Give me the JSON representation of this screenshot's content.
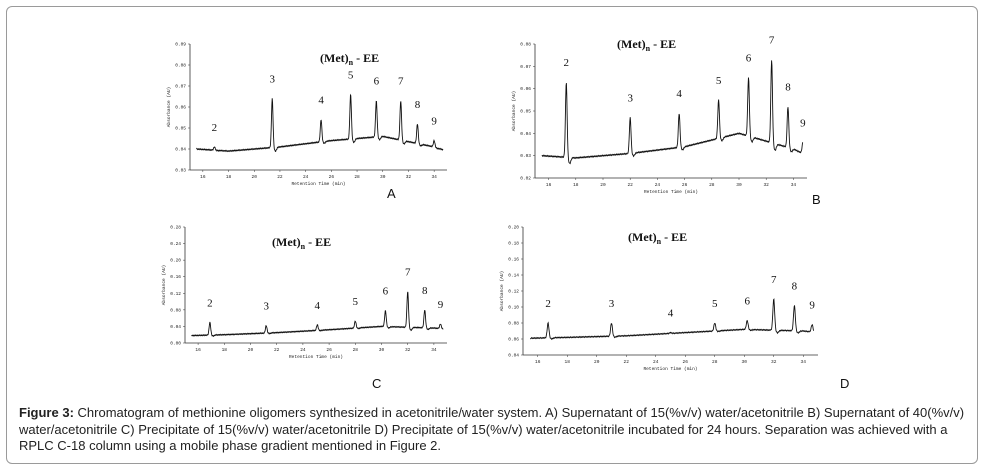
{
  "chart_data": [
    {
      "id": "A",
      "type": "line",
      "title_main": "(Met)",
      "title_sub": "n",
      "title_tail": " - EE",
      "panel_label": "A",
      "xlabel": "Retention Time (min)",
      "ylabel": "Absorbance (AU)",
      "x_ticks": [
        "16",
        "18",
        "20",
        "22",
        "24",
        "26",
        "28",
        "30",
        "32",
        "34"
      ],
      "y_ticks": [
        "0.09",
        "0.08",
        "0.07",
        "0.06",
        "0.05",
        "0.04",
        "0.03"
      ],
      "xlim": [
        15,
        35
      ],
      "ylim": [
        0.03,
        0.09
      ],
      "baseline": {
        "x": [
          15.5,
          18,
          22,
          26,
          30,
          34,
          35
        ],
        "y": [
          0.04,
          0.039,
          0.041,
          0.044,
          0.046,
          0.041,
          0.039
        ]
      },
      "peaks": [
        {
          "label": "2",
          "x": 16.9,
          "height": 0.041
        },
        {
          "label": "3",
          "x": 21.4,
          "height": 0.064
        },
        {
          "label": "4",
          "x": 25.2,
          "height": 0.054
        },
        {
          "label": "5",
          "x": 27.5,
          "height": 0.066
        },
        {
          "label": "6",
          "x": 29.5,
          "height": 0.063
        },
        {
          "label": "7",
          "x": 31.4,
          "height": 0.063
        },
        {
          "label": "8",
          "x": 32.7,
          "height": 0.052
        },
        {
          "label": "9",
          "x": 34.0,
          "height": 0.044
        }
      ]
    },
    {
      "id": "B",
      "type": "line",
      "title_main": "(Met)",
      "title_sub": "n",
      "title_tail": " - EE",
      "panel_label": "B",
      "xlabel": "Retention Time (min)",
      "ylabel": "Absorbance (AU)",
      "x_ticks": [
        "16",
        "18",
        "20",
        "22",
        "24",
        "26",
        "28",
        "30",
        "32",
        "34"
      ],
      "y_ticks": [
        "0.08",
        "0.07",
        "0.06",
        "0.05",
        "0.04",
        "0.03",
        "0.02"
      ],
      "xlim": [
        15,
        35
      ],
      "ylim": [
        0.02,
        0.08
      ],
      "baseline": {
        "x": [
          15.5,
          18,
          22,
          26,
          30,
          34,
          35
        ],
        "y": [
          0.03,
          0.029,
          0.031,
          0.034,
          0.04,
          0.033,
          0.03
        ]
      },
      "peaks": [
        {
          "label": "2",
          "x": 17.3,
          "height": 0.063
        },
        {
          "label": "3",
          "x": 22.0,
          "height": 0.047
        },
        {
          "label": "4",
          "x": 25.6,
          "height": 0.049
        },
        {
          "label": "5",
          "x": 28.5,
          "height": 0.055
        },
        {
          "label": "6",
          "x": 30.7,
          "height": 0.065
        },
        {
          "label": "7",
          "x": 32.4,
          "height": 0.073
        },
        {
          "label": "8",
          "x": 33.6,
          "height": 0.052
        },
        {
          "label": "9",
          "x": 34.7,
          "height": 0.036
        }
      ]
    },
    {
      "id": "C",
      "type": "line",
      "title_main": "(Met)",
      "title_sub": "n",
      "title_tail": " - EE",
      "panel_label": "C",
      "xlabel": "Retention Time (min)",
      "ylabel": "Absorbance (AU)",
      "x_ticks": [
        "16",
        "18",
        "20",
        "22",
        "24",
        "26",
        "28",
        "30",
        "32",
        "34"
      ],
      "y_ticks": [
        "0.28",
        "0.24",
        "0.20",
        "0.16",
        "0.12",
        "0.08",
        "0.04",
        "0.00"
      ],
      "xlim": [
        15,
        35
      ],
      "ylim": [
        0.0,
        0.28
      ],
      "baseline": {
        "x": [
          15.5,
          18,
          22,
          26,
          30,
          34,
          35
        ],
        "y": [
          0.018,
          0.02,
          0.025,
          0.032,
          0.04,
          0.036,
          0.034
        ]
      },
      "peaks": [
        {
          "label": "2",
          "x": 16.9,
          "height": 0.05
        },
        {
          "label": "3",
          "x": 21.2,
          "height": 0.042
        },
        {
          "label": "4",
          "x": 25.1,
          "height": 0.044
        },
        {
          "label": "5",
          "x": 28.0,
          "height": 0.053
        },
        {
          "label": "6",
          "x": 30.3,
          "height": 0.078
        },
        {
          "label": "7",
          "x": 32.0,
          "height": 0.124
        },
        {
          "label": "8",
          "x": 33.3,
          "height": 0.08
        },
        {
          "label": "9",
          "x": 34.5,
          "height": 0.046
        }
      ]
    },
    {
      "id": "D",
      "type": "line",
      "title_main": "(Met)",
      "title_sub": "n",
      "title_tail": " - EE",
      "panel_label": "D",
      "xlabel": "Retention Time (min)",
      "ylabel": "Absorbance (AU)",
      "x_ticks": [
        "16",
        "18",
        "20",
        "22",
        "24",
        "26",
        "28",
        "30",
        "32",
        "34"
      ],
      "y_ticks": [
        "0.20",
        "0.18",
        "0.16",
        "0.14",
        "0.12",
        "0.10",
        "0.08",
        "0.06",
        "0.04"
      ],
      "xlim": [
        15,
        35
      ],
      "ylim": [
        0.04,
        0.2
      ],
      "baseline": {
        "x": [
          15.5,
          18,
          22,
          26,
          30,
          34,
          35
        ],
        "y": [
          0.061,
          0.062,
          0.064,
          0.068,
          0.072,
          0.07,
          0.068
        ]
      },
      "peaks": [
        {
          "label": "2",
          "x": 16.7,
          "height": 0.08
        },
        {
          "label": "3",
          "x": 21.0,
          "height": 0.08
        },
        {
          "label": "4",
          "x": 25.0,
          "height": 0.068
        },
        {
          "label": "5",
          "x": 28.0,
          "height": 0.08
        },
        {
          "label": "6",
          "x": 30.2,
          "height": 0.083
        },
        {
          "label": "7",
          "x": 32.0,
          "height": 0.11
        },
        {
          "label": "8",
          "x": 33.4,
          "height": 0.102
        },
        {
          "label": "9",
          "x": 34.6,
          "height": 0.078
        }
      ]
    }
  ],
  "caption": {
    "label": "Figure 3:",
    "text": " Chromatogram of methionine oligomers synthesized in acetonitrile/water system. A) Supernatant of 15(%v/v) water/acetonitrile B) Supernatant of 40(%v/v) water/acetonitrile C) Precipitate of 15(%v/v) water/acetonitrile D) Precipitate of 15(%v/v) water/acetonitrile incubated for 24 hours. Separation was achieved with a RPLC C-18 column using a mobile phase gradient mentioned in Figure 2."
  }
}
